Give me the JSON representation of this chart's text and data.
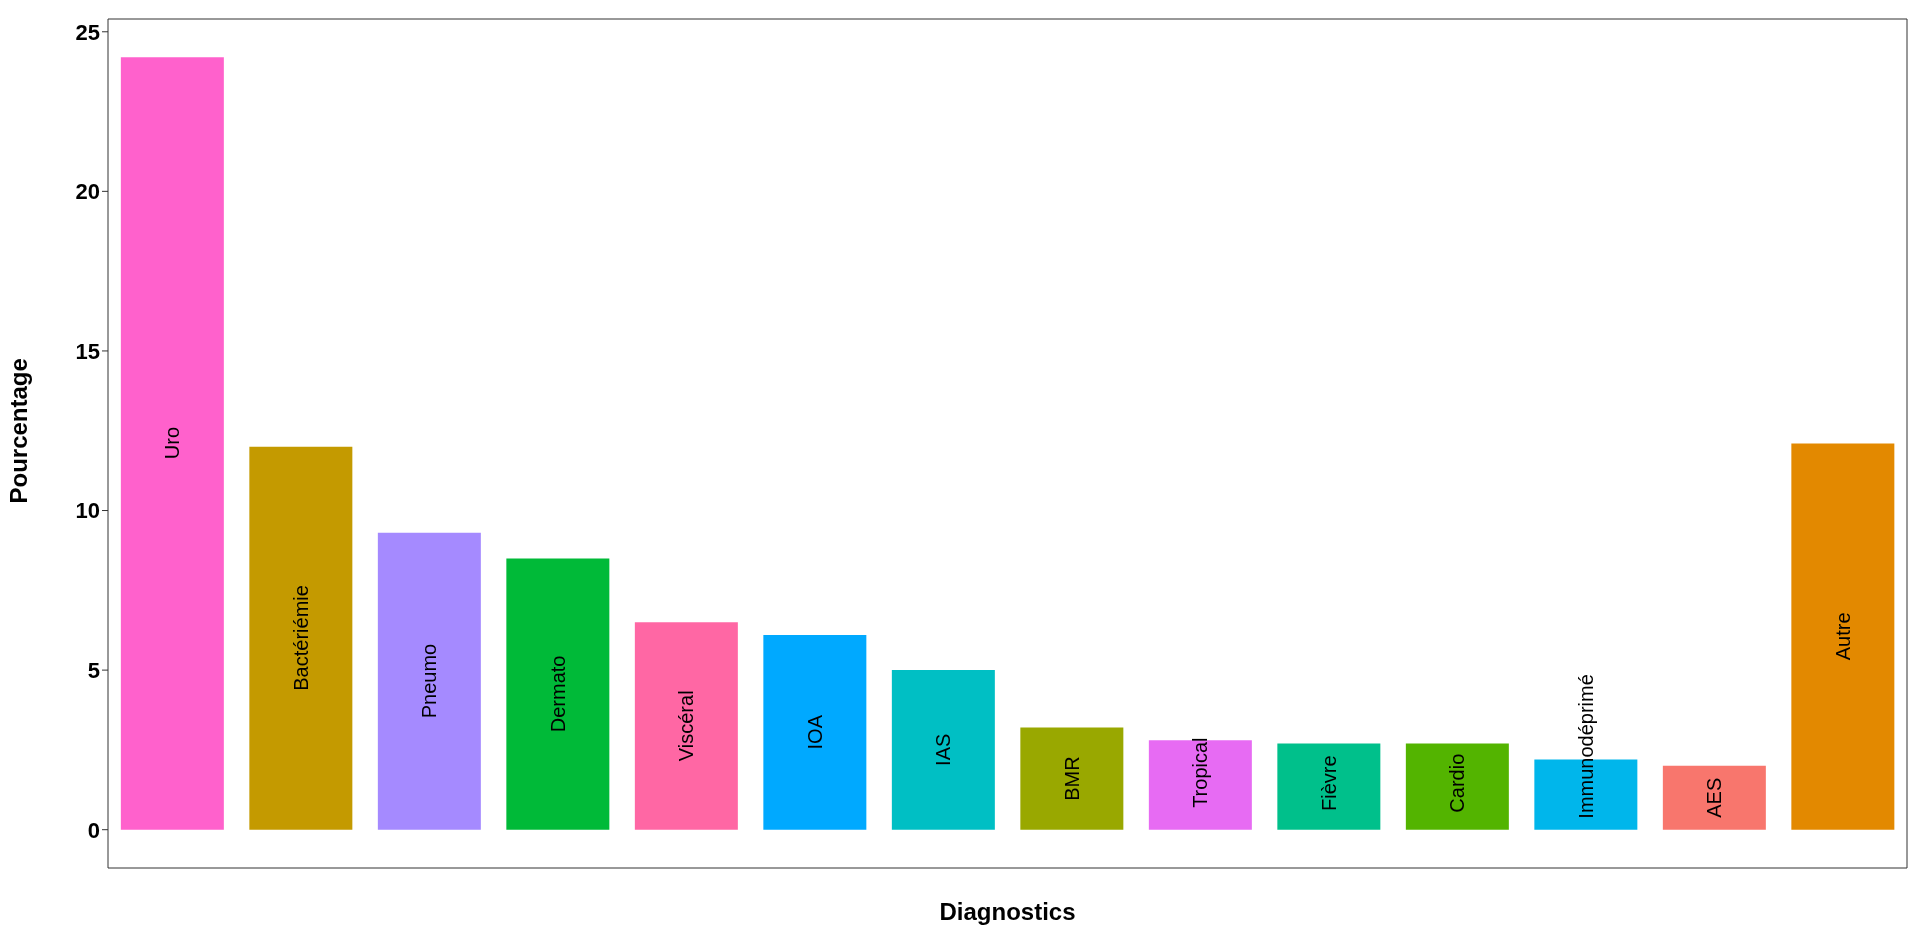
{
  "chart_data": {
    "type": "bar",
    "xlabel": "Diagnostics",
    "ylabel": "Pourcentage",
    "categories": [
      "Uro",
      "Bactériémie",
      "Pneumo",
      "Dermato",
      "Viscéral",
      "IOA",
      "IAS",
      "BMR",
      "Tropical",
      "Fièvre",
      "Cardio",
      "Immunodéprimé",
      "AES",
      "Autre"
    ],
    "values": [
      24.2,
      12.0,
      9.3,
      8.5,
      6.5,
      6.1,
      5.0,
      3.2,
      2.8,
      2.7,
      2.7,
      2.2,
      2.0,
      12.1
    ],
    "colors": [
      "#ff61cc",
      "#c49a00",
      "#a58aff",
      "#00ba38",
      "#ff67a4",
      "#00a9ff",
      "#00bfc4",
      "#99a800",
      "#e76bf3",
      "#00c08b",
      "#53b400",
      "#00b6eb",
      "#f8766d",
      "#e38900"
    ],
    "ylim": [
      -1.2,
      25.4
    ],
    "yticks": [
      0,
      5,
      10,
      15,
      20,
      25
    ],
    "grid": false,
    "tick_labels": "y"
  }
}
